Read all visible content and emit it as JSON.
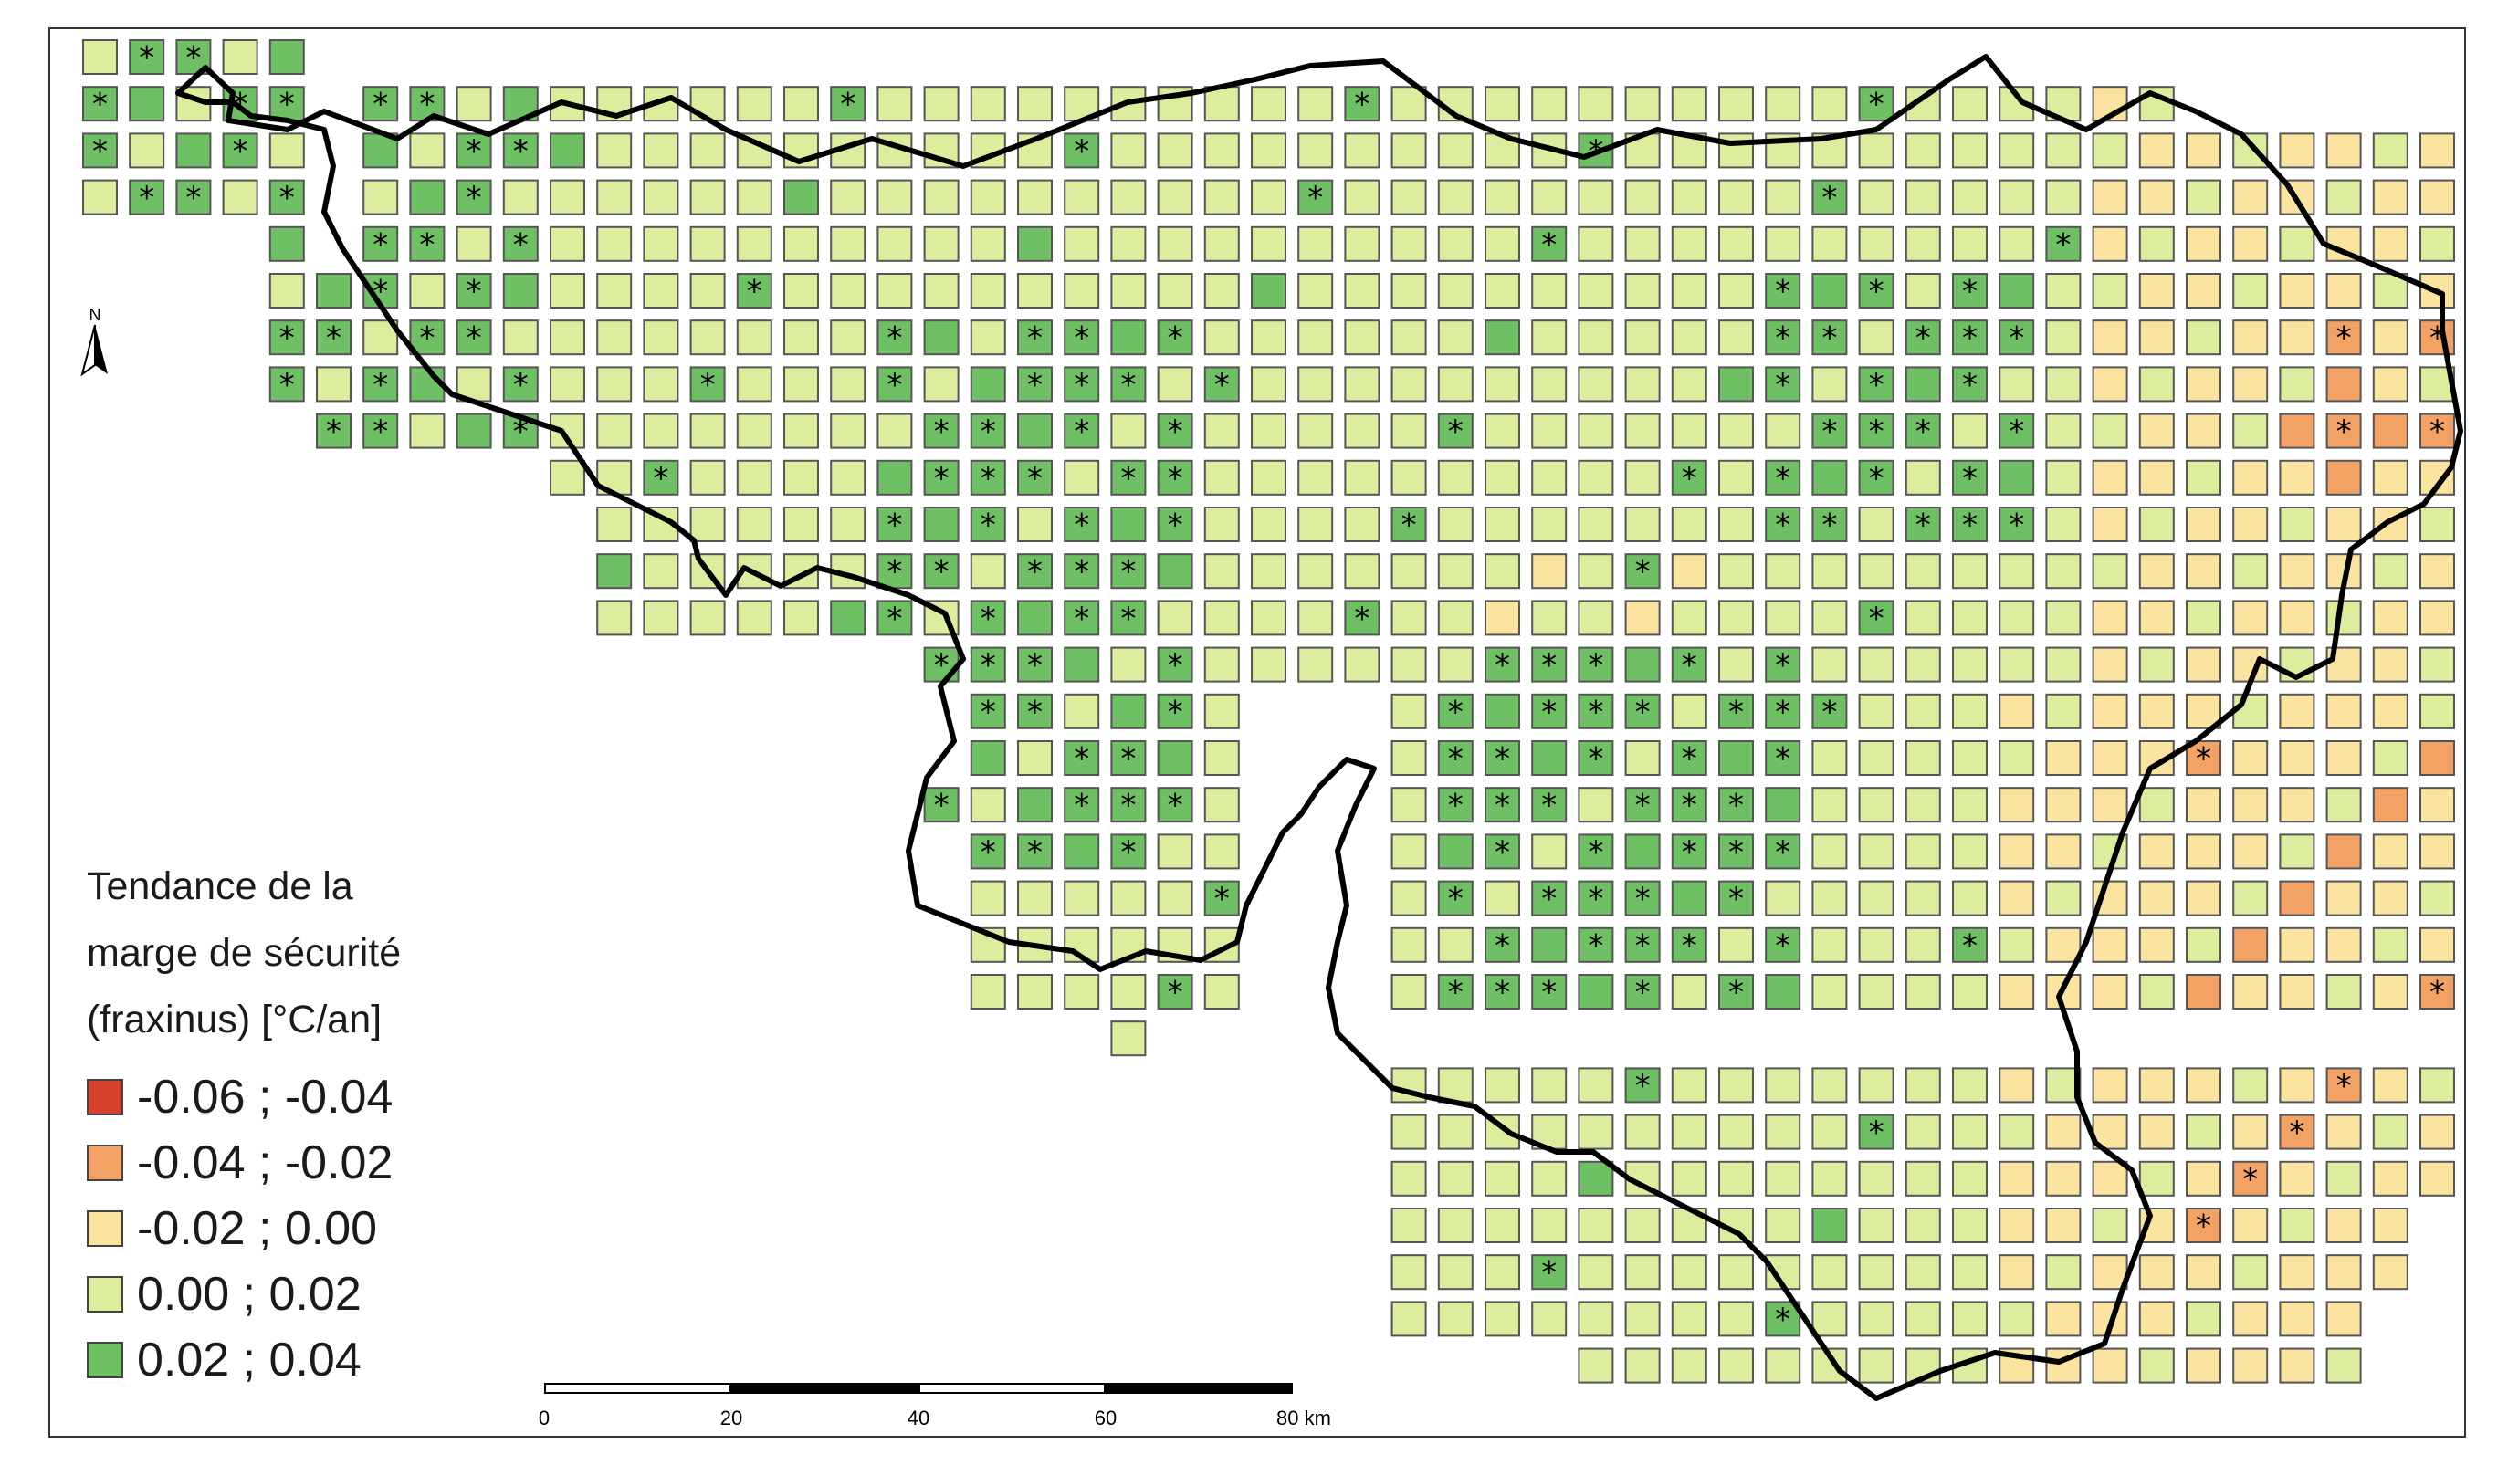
{
  "legend": {
    "title_lines": [
      "Tendance de la",
      "marge de sécurité",
      "(fraxinus) [°C/an]"
    ],
    "items": [
      {
        "label": "-0.06 ; -0.04",
        "color": "#d7402c"
      },
      {
        "label": "-0.04 ; -0.02",
        "color": "#f3a266"
      },
      {
        "label": "-0.02 ; 0.00",
        "color": "#fbe3a0"
      },
      {
        "label": "0.00 ; 0.02",
        "color": "#dcee9e"
      },
      {
        "label": "0.02 ; 0.04",
        "color": "#6fbf64"
      }
    ]
  },
  "north_arrow": {
    "letter": "N"
  },
  "scale_bar": {
    "ticks": [
      "0",
      "20",
      "40",
      "60",
      "80 km"
    ]
  },
  "significance_marker": "*"
}
